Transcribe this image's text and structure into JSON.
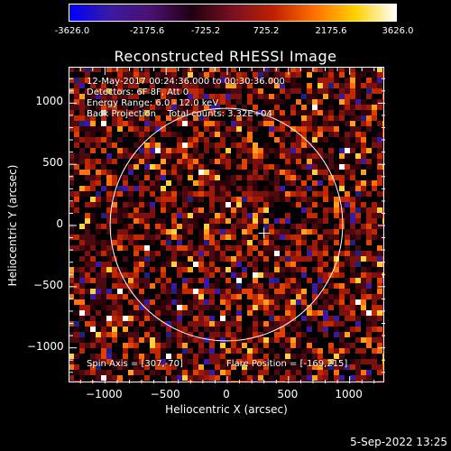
{
  "colorbar": {
    "labels": [
      "-3626.0",
      "-2175.6",
      "-725.2",
      "725.2",
      "2175.6",
      "3626.0"
    ],
    "min": -3626.0,
    "max": 3626.0,
    "colors": [
      "#0000ff",
      "#3a1aa0",
      "#4a1070",
      "#200010",
      "#7a1020",
      "#c02000",
      "#ff7000",
      "#ffd000",
      "#ffffff"
    ]
  },
  "title": "Reconstructed RHESSI Image",
  "annotations": {
    "line1": "12-May-2017 00:24:36.000 to 00:30:36.000",
    "line2": "Detectors: 6F 8F, Att 0",
    "line3": "Energy Range: 6.0 - 12.0 keV",
    "line4": "Back Projection    Total counts: 3.32E+04",
    "spin_axis": "Spin Axis = [307,-70]",
    "flare_position": "Flare Position = [-169,215]"
  },
  "axes": {
    "xlabel": "Heliocentric X (arcsec)",
    "ylabel": "Heliocentric Y (arcsec)",
    "xrange": [
      -1290,
      1290
    ],
    "yrange": [
      -1290,
      1290
    ],
    "xticks": [
      {
        "value": -1000,
        "label": "−1000"
      },
      {
        "value": -500,
        "label": "−500"
      },
      {
        "value": 0,
        "label": "0"
      },
      {
        "value": 500,
        "label": "500"
      },
      {
        "value": 1000,
        "label": "1000"
      }
    ],
    "yticks": [
      {
        "value": 1000,
        "label": "1000"
      },
      {
        "value": 500,
        "label": "500"
      },
      {
        "value": 0,
        "label": "0"
      },
      {
        "value": -500,
        "label": "−500"
      },
      {
        "value": -1000,
        "label": "−1000"
      }
    ]
  },
  "overlay": {
    "limb_center": [
      0,
      0
    ],
    "limb_radius_arcsec": 950,
    "marker_position": [
      307,
      -70
    ]
  },
  "timestamp": "5-Sep-2022 13:25"
}
